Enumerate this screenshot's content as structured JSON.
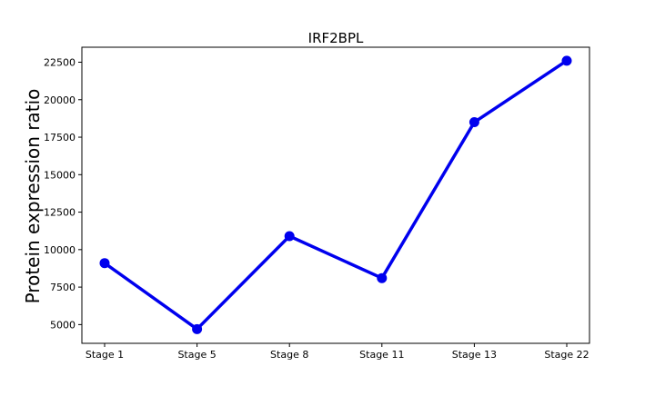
{
  "chart_data": {
    "type": "line",
    "title": "IRF2BPL",
    "xlabel": "",
    "ylabel": "Protein expression ratio",
    "categories": [
      "Stage 1",
      "Stage 5",
      "Stage 8",
      "Stage 11",
      "Stage 13",
      "Stage 22"
    ],
    "series": [
      {
        "values": [
          9100,
          4700,
          10900,
          8100,
          18500,
          22600
        ],
        "color": "#0000ee"
      }
    ],
    "ylim": [
      3750,
      23500
    ],
    "yticks": [
      5000,
      7500,
      10000,
      12500,
      15000,
      17500,
      20000,
      22500
    ],
    "grid": false,
    "legend": "none"
  }
}
